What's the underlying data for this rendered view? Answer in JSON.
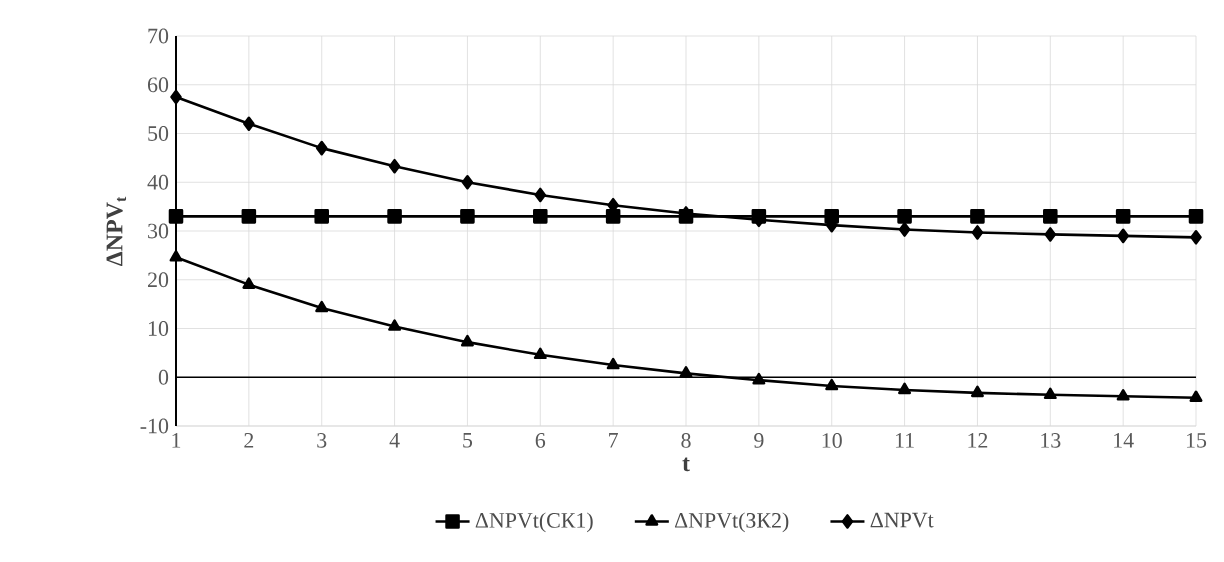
{
  "chart_data": {
    "type": "line",
    "xlabel": "t",
    "ylabel": "ΔNPV$_{t}$",
    "x": [
      1,
      2,
      3,
      4,
      5,
      6,
      7,
      8,
      9,
      10,
      11,
      12,
      13,
      14,
      15
    ],
    "series": [
      {
        "name": "ΔNPVt(СК1)",
        "color": "#000000",
        "marker": "square",
        "values": [
          33,
          33,
          33,
          33,
          33,
          33,
          33,
          33,
          33,
          33,
          33,
          33,
          33,
          33,
          33
        ]
      },
      {
        "name": "ΔNPVt(ЗК2)",
        "color": "#000000",
        "marker": "triangle",
        "values": [
          24.6,
          19,
          14.2,
          10.4,
          7.2,
          4.6,
          2.5,
          0.8,
          -0.6,
          -1.8,
          -2.6,
          -3.2,
          -3.6,
          -3.9,
          -4.2
        ]
      },
      {
        "name": "ΔNPVt",
        "color": "#000000",
        "marker": "diamond",
        "values": [
          57.5,
          52,
          47,
          43.3,
          40,
          37.4,
          35.3,
          33.6,
          32.3,
          31.2,
          30.3,
          29.7,
          29.3,
          29,
          28.7
        ]
      }
    ],
    "xlim": [
      1,
      15
    ],
    "xticks": [
      1,
      2,
      3,
      4,
      5,
      6,
      7,
      8,
      9,
      10,
      11,
      12,
      13,
      14,
      15
    ],
    "ylim": [
      -10,
      70
    ],
    "yticks": [
      -10,
      0,
      10,
      20,
      30,
      40,
      50,
      60,
      70
    ],
    "ref_lines": [
      {
        "axis": "y",
        "value": 0
      }
    ],
    "grid": true,
    "legend": "bottom",
    "line_style": "solid"
  }
}
